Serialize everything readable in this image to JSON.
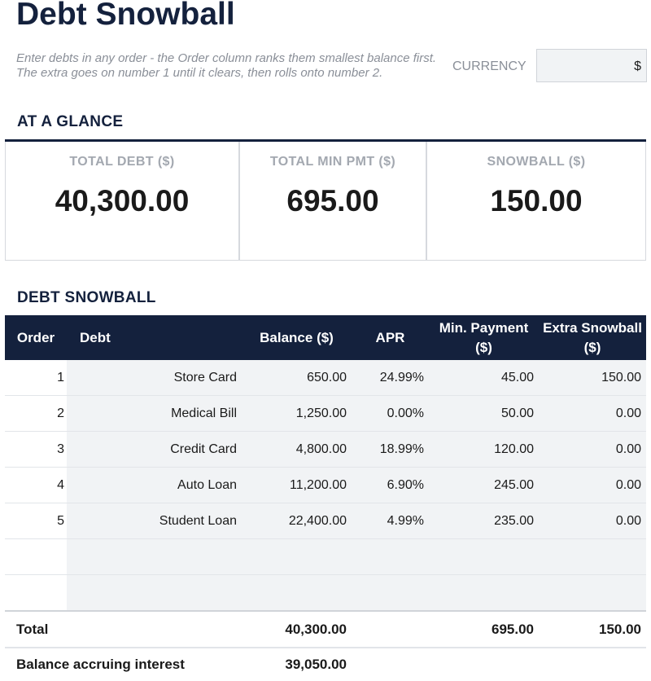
{
  "header": {
    "title": "Debt Snowball",
    "subtitle": "Enter debts in any order - the Order column ranks them smallest balance first. The extra goes on number 1 until it clears, then rolls onto number 2.",
    "currency_label": "CURRENCY",
    "currency_value": "$"
  },
  "glance": {
    "heading": "AT A GLANCE",
    "cards": [
      {
        "label": "TOTAL DEBT ($)",
        "value": "40,300.00"
      },
      {
        "label": "TOTAL MIN PMT ($)",
        "value": "695.00"
      },
      {
        "label": "SNOWBALL ($)",
        "value": "150.00"
      }
    ]
  },
  "table": {
    "heading": "DEBT SNOWBALL",
    "columns": [
      "Order",
      "Debt",
      "Balance ($)",
      "APR",
      "Min. Payment ($)",
      "Extra Snowball ($)"
    ],
    "rows": [
      [
        "1",
        "Store Card",
        "650.00",
        "24.99%",
        "45.00",
        "150.00"
      ],
      [
        "2",
        "Medical Bill",
        "1,250.00",
        "0.00%",
        "50.00",
        "0.00"
      ],
      [
        "3",
        "Credit Card",
        "4,800.00",
        "18.99%",
        "120.00",
        "0.00"
      ],
      [
        "4",
        "Auto Loan",
        "11,200.00",
        "6.90%",
        "245.00",
        "0.00"
      ],
      [
        "5",
        "Student Loan",
        "22,400.00",
        "4.99%",
        "235.00",
        "0.00"
      ]
    ],
    "total": {
      "label": "Total",
      "balance": "40,300.00",
      "min_payment": "695.00",
      "extra": "150.00"
    },
    "accruing": {
      "label": "Balance accruing interest",
      "balance": "39,050.00"
    }
  }
}
